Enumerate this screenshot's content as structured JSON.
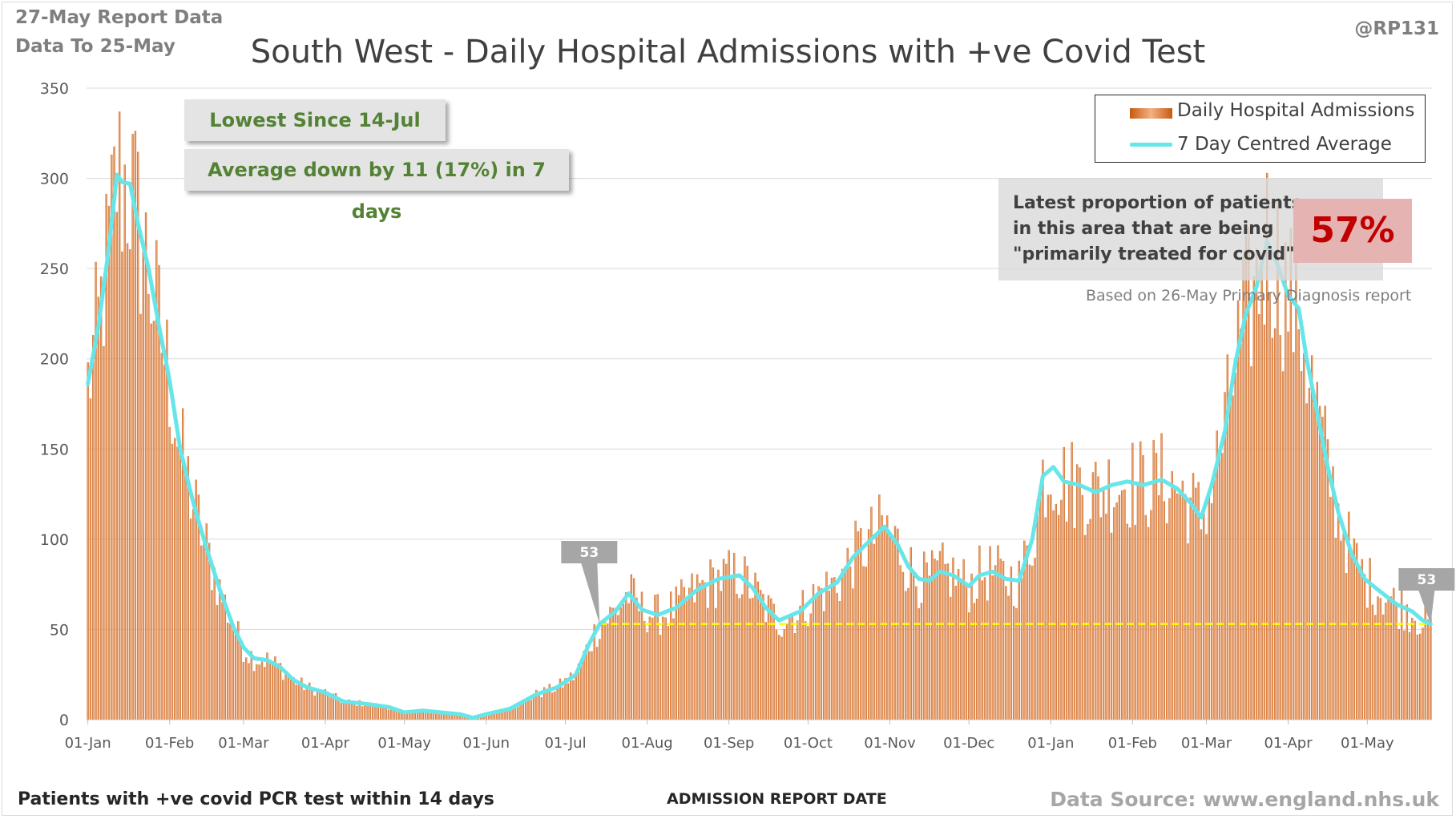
{
  "header": {
    "report_line1": "27-May Report Data",
    "report_line2": "Data To 25-May",
    "handle": "@RP131"
  },
  "callouts": {
    "lowest": "Lowest Since 14-Jul",
    "average": "Average down by 11 (17%) in 7 days"
  },
  "proportion": {
    "line1": "Latest proportion of patients",
    "line2": "in this area that are being",
    "line3": "\"primarily treated for covid\"",
    "value": "57%",
    "based_on": "Based on 26-May Primary Diagnosis report"
  },
  "footer": {
    "note": "Patients with +ve covid PCR test within 14 days",
    "data_source": "Data Source: www.england.nhs.uk"
  },
  "colors": {
    "bar": "#c55a11",
    "bar_light": "#f4b183",
    "average_line": "#67e6ea",
    "reference_line": "#ffff00",
    "marker": "#a6a6a6",
    "callout_text": "#548235",
    "highlight_text": "#c00000"
  },
  "chart_data": {
    "type": "bar",
    "title": "South West - Daily Hospital Admissions with +ve Covid Test",
    "xlabel": "ADMISSION REPORT DATE",
    "ylabel": "",
    "ylim": [
      0,
      350
    ],
    "yticks": [
      0,
      50,
      100,
      150,
      200,
      250,
      300,
      350
    ],
    "grid": true,
    "legend_position": "top-right",
    "x_start": "2021-01-01",
    "x_end": "2022-05-25",
    "xtick_labels": [
      "01-Jan",
      "01-Feb",
      "01-Mar",
      "01-Apr",
      "01-May",
      "01-Jun",
      "01-Jul",
      "01-Aug",
      "01-Sep",
      "01-Oct",
      "01-Nov",
      "01-Dec",
      "01-Jan",
      "01-Feb",
      "01-Mar",
      "01-Apr",
      "01-May"
    ],
    "xtick_dates": [
      "2021-01-01",
      "2021-02-01",
      "2021-03-01",
      "2021-04-01",
      "2021-05-01",
      "2021-06-01",
      "2021-07-01",
      "2021-08-01",
      "2021-09-01",
      "2021-10-01",
      "2021-11-01",
      "2021-12-01",
      "2022-01-01",
      "2022-02-01",
      "2022-03-01",
      "2022-04-01",
      "2022-05-01"
    ],
    "series": [
      {
        "name": "Daily Hospital Admissions",
        "kind": "bar",
        "note": "daily values approximated from the 7 day average with day-to-day variation"
      },
      {
        "name": "7 Day Centred Average",
        "kind": "line",
        "points": [
          [
            "2021-01-01",
            186
          ],
          [
            "2021-01-05",
            218
          ],
          [
            "2021-01-09",
            262
          ],
          [
            "2021-01-12",
            302
          ],
          [
            "2021-01-14",
            298
          ],
          [
            "2021-01-17",
            297
          ],
          [
            "2021-01-20",
            275
          ],
          [
            "2021-01-24",
            250
          ],
          [
            "2021-01-28",
            218
          ],
          [
            "2021-02-01",
            188
          ],
          [
            "2021-02-05",
            150
          ],
          [
            "2021-02-10",
            120
          ],
          [
            "2021-02-15",
            95
          ],
          [
            "2021-02-20",
            72
          ],
          [
            "2021-02-25",
            52
          ],
          [
            "2021-03-01",
            40
          ],
          [
            "2021-03-05",
            34
          ],
          [
            "2021-03-10",
            33
          ],
          [
            "2021-03-15",
            29
          ],
          [
            "2021-03-20",
            22
          ],
          [
            "2021-03-25",
            18
          ],
          [
            "2021-04-01",
            15
          ],
          [
            "2021-04-08",
            10
          ],
          [
            "2021-04-15",
            9
          ],
          [
            "2021-04-25",
            7
          ],
          [
            "2021-05-01",
            4
          ],
          [
            "2021-05-08",
            5
          ],
          [
            "2021-05-15",
            4
          ],
          [
            "2021-05-22",
            3
          ],
          [
            "2021-05-27",
            1
          ],
          [
            "2021-06-01",
            3
          ],
          [
            "2021-06-10",
            6
          ],
          [
            "2021-06-20",
            14
          ],
          [
            "2021-06-28",
            18
          ],
          [
            "2021-07-05",
            25
          ],
          [
            "2021-07-10",
            42
          ],
          [
            "2021-07-14",
            53
          ],
          [
            "2021-07-20",
            60
          ],
          [
            "2021-07-25",
            70
          ],
          [
            "2021-07-30",
            61
          ],
          [
            "2021-08-05",
            58
          ],
          [
            "2021-08-12",
            62
          ],
          [
            "2021-08-20",
            72
          ],
          [
            "2021-08-28",
            78
          ],
          [
            "2021-09-05",
            80
          ],
          [
            "2021-09-10",
            73
          ],
          [
            "2021-09-15",
            62
          ],
          [
            "2021-09-20",
            55
          ],
          [
            "2021-09-28",
            60
          ],
          [
            "2021-10-05",
            70
          ],
          [
            "2021-10-12",
            76
          ],
          [
            "2021-10-18",
            90
          ],
          [
            "2021-10-25",
            100
          ],
          [
            "2021-10-30",
            107
          ],
          [
            "2021-11-04",
            97
          ],
          [
            "2021-11-08",
            85
          ],
          [
            "2021-11-12",
            78
          ],
          [
            "2021-11-16",
            77
          ],
          [
            "2021-11-20",
            82
          ],
          [
            "2021-11-25",
            80
          ],
          [
            "2021-12-01",
            74
          ],
          [
            "2021-12-05",
            80
          ],
          [
            "2021-12-10",
            82
          ],
          [
            "2021-12-15",
            78
          ],
          [
            "2021-12-20",
            77
          ],
          [
            "2021-12-25",
            100
          ],
          [
            "2021-12-29",
            135
          ],
          [
            "2022-01-02",
            140
          ],
          [
            "2022-01-06",
            132
          ],
          [
            "2022-01-12",
            130
          ],
          [
            "2022-01-18",
            126
          ],
          [
            "2022-01-24",
            130
          ],
          [
            "2022-01-30",
            132
          ],
          [
            "2022-02-05",
            130
          ],
          [
            "2022-02-12",
            133
          ],
          [
            "2022-02-18",
            128
          ],
          [
            "2022-02-23",
            120
          ],
          [
            "2022-02-27",
            112
          ],
          [
            "2022-03-03",
            130
          ],
          [
            "2022-03-08",
            160
          ],
          [
            "2022-03-12",
            198
          ],
          [
            "2022-03-16",
            225
          ],
          [
            "2022-03-20",
            240
          ],
          [
            "2022-03-24",
            265
          ],
          [
            "2022-03-28",
            252
          ],
          [
            "2022-04-01",
            235
          ],
          [
            "2022-04-05",
            228
          ],
          [
            "2022-04-08",
            200
          ],
          [
            "2022-04-12",
            170
          ],
          [
            "2022-04-16",
            140
          ],
          [
            "2022-04-20",
            115
          ],
          [
            "2022-04-25",
            92
          ],
          [
            "2022-04-30",
            78
          ],
          [
            "2022-05-05",
            72
          ],
          [
            "2022-05-12",
            64
          ],
          [
            "2022-05-18",
            60
          ],
          [
            "2022-05-22",
            55
          ],
          [
            "2022-05-25",
            53
          ]
        ]
      }
    ],
    "reference_line": {
      "value": 53,
      "from": "2021-07-14",
      "to": "2022-05-25"
    },
    "markers": [
      {
        "date": "2021-07-14",
        "label": "53"
      },
      {
        "date": "2022-05-25",
        "label": "53"
      }
    ]
  }
}
